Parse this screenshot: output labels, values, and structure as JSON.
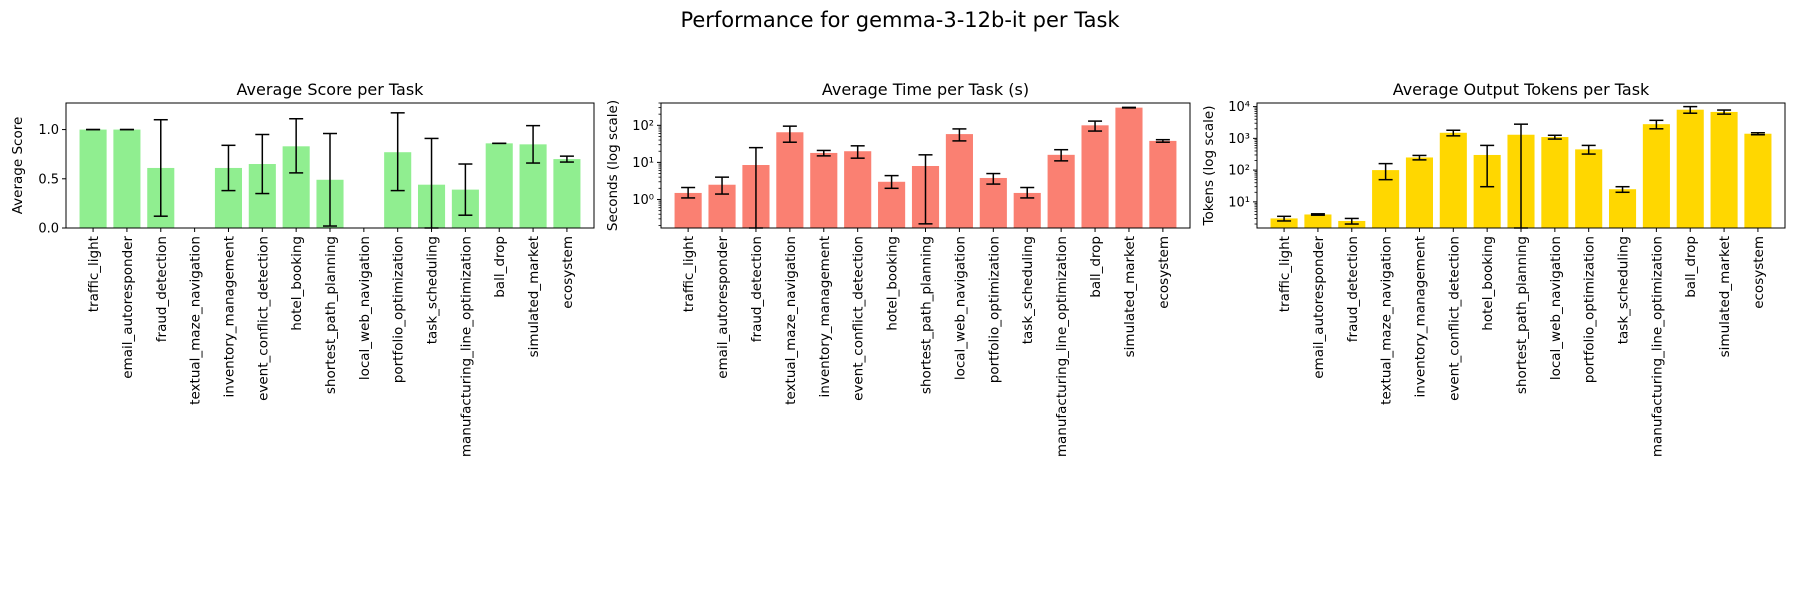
{
  "figure": {
    "suptitle": "Performance for gemma-3-12b-it per Task"
  },
  "colors": {
    "score": "#90EE90",
    "time": "#FA8072",
    "tokens": "#FFD700",
    "errorbar": "#000000",
    "axis": "#000000"
  },
  "chart_data": [
    {
      "type": "bar",
      "title": "Average Score per Task",
      "xlabel": "",
      "ylabel": "Average Score",
      "yscale": "linear",
      "ylim": [
        0,
        1.27
      ],
      "yticks": [
        0.0,
        0.5,
        1.0
      ],
      "ytick_labels": [
        "0.0",
        "0.5",
        "1.0"
      ],
      "grid": false,
      "categories": [
        "traffic_light",
        "email_autoresponder",
        "fraud_detection",
        "textual_maze_navigation",
        "inventory_management",
        "event_conflict_detection",
        "hotel_booking",
        "shortest_path_planning",
        "local_web_navigation",
        "portfolio_optimization",
        "task_scheduling",
        "manufacturing_line_optimization",
        "ball_drop",
        "simulated_market",
        "ecosystem"
      ],
      "values": [
        1.0,
        1.0,
        0.61,
        0.0,
        0.61,
        0.65,
        0.83,
        0.49,
        0.0,
        0.77,
        0.44,
        0.39,
        0.86,
        0.85,
        0.7
      ],
      "err_low": [
        1.0,
        1.0,
        0.12,
        null,
        0.38,
        0.35,
        0.56,
        0.02,
        null,
        0.38,
        0.0,
        0.13,
        0.86,
        0.66,
        0.67
      ],
      "err_high": [
        1.0,
        1.0,
        1.1,
        null,
        0.84,
        0.95,
        1.11,
        0.96,
        null,
        1.17,
        0.91,
        0.65,
        0.86,
        1.04,
        0.73
      ]
    },
    {
      "type": "bar",
      "title": "Average Time per Task (s)",
      "xlabel": "",
      "ylabel": "Seconds (log scale)",
      "yscale": "log",
      "ylim": [
        0.17,
        400
      ],
      "yticks": [
        1,
        10,
        100
      ],
      "ytick_labels": [
        "10⁰",
        "10¹",
        "10²"
      ],
      "grid": false,
      "categories": [
        "traffic_light",
        "email_autoresponder",
        "fraud_detection",
        "textual_maze_navigation",
        "inventory_management",
        "event_conflict_detection",
        "hotel_booking",
        "shortest_path_planning",
        "local_web_navigation",
        "portfolio_optimization",
        "task_scheduling",
        "manufacturing_line_optimization",
        "ball_drop",
        "simulated_market",
        "ecosystem"
      ],
      "values": [
        1.5,
        2.5,
        8.5,
        65,
        18,
        20,
        3.0,
        8.0,
        58,
        3.8,
        1.5,
        16,
        100,
        300,
        38
      ],
      "err_low": [
        1.1,
        1.4,
        0.17,
        35,
        15,
        13,
        2.0,
        0.22,
        38,
        2.6,
        1.1,
        11,
        70,
        295,
        35
      ],
      "err_high": [
        2.1,
        4.0,
        25,
        95,
        21,
        28,
        4.4,
        16,
        80,
        5.0,
        2.1,
        22,
        130,
        305,
        41
      ]
    },
    {
      "type": "bar",
      "title": "Average Output Tokens per Task",
      "xlabel": "",
      "ylabel": "Tokens (log scale)",
      "yscale": "log",
      "ylim": [
        1.5,
        13000
      ],
      "yticks": [
        10,
        100,
        1000,
        10000
      ],
      "ytick_labels": [
        "10¹",
        "10²",
        "10³",
        "10⁴"
      ],
      "grid": false,
      "categories": [
        "traffic_light",
        "email_autoresponder",
        "fraud_detection",
        "textual_maze_navigation",
        "inventory_management",
        "event_conflict_detection",
        "hotel_booking",
        "shortest_path_planning",
        "local_web_navigation",
        "portfolio_optimization",
        "task_scheduling",
        "manufacturing_line_optimization",
        "ball_drop",
        "simulated_market",
        "ecosystem"
      ],
      "values": [
        3.0,
        4.0,
        2.5,
        100,
        250,
        1500,
        300,
        1300,
        1100,
        450,
        25,
        2800,
        8000,
        6800,
        1400
      ],
      "err_low": [
        2.5,
        3.8,
        2.0,
        50,
        210,
        1200,
        30,
        1.5,
        950,
        320,
        20,
        2000,
        6200,
        5800,
        1300
      ],
      "err_high": [
        3.5,
        4.2,
        3.0,
        160,
        290,
        1800,
        600,
        2800,
        1250,
        600,
        30,
        3700,
        10000,
        7800,
        1500
      ]
    }
  ]
}
